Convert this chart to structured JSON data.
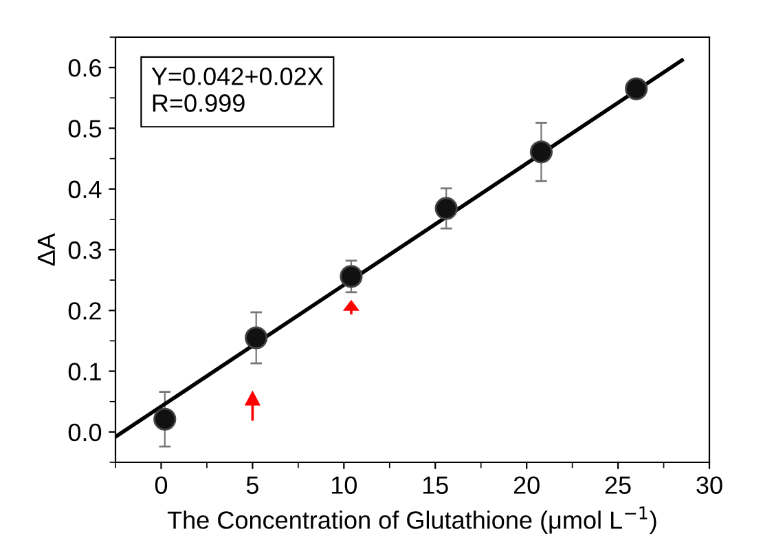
{
  "chart_data": {
    "type": "scatter",
    "xlabel": "The Concentration of Glutathione (μmol L$^{−1}$)",
    "ylabel": "ΔA",
    "annotations": [
      "Y=0.042+0.02X\nR=0.999"
    ],
    "series": [
      {
        "marker": "circle",
        "color": "#111111",
        "x": [
          0.2,
          5.2,
          10.4,
          15.6,
          20.8,
          26.0
        ],
        "values": [
          0.021,
          0.155,
          0.256,
          0.368,
          0.461,
          0.565
        ],
        "errors": [
          0.045,
          0.042,
          0.026,
          0.033,
          0.048,
          null
        ]
      },
      {
        "type": "line",
        "marker": "none",
        "color": "#000000",
        "x": [
          -2.5,
          28.5
        ],
        "values": [
          -0.008,
          0.612
        ]
      }
    ],
    "line_style": "solid",
    "grid": false,
    "legend": false,
    "xlim": [
      -2.5,
      30
    ],
    "ylim": [
      -0.05,
      0.65
    ],
    "xticks": [
      0,
      5,
      10,
      15,
      20,
      25,
      30
    ],
    "yticks": [
      {
        "value": 0,
        "label": "0.0"
      },
      0.1,
      0.2,
      0.3,
      0.4,
      0.5,
      0.6
    ]
  }
}
